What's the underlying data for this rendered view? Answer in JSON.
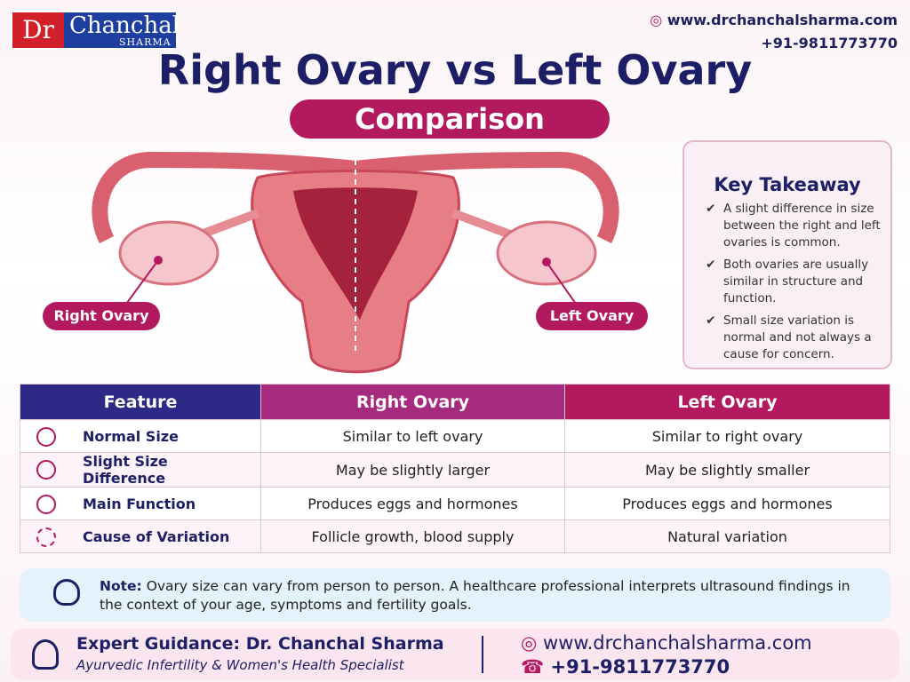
{
  "logo": {
    "dr": "Dr",
    "name": "Chanchal",
    "surname": "SHARMA"
  },
  "contact": {
    "website": "www.drchanchalsharma.com",
    "phone": "+91-9811773770"
  },
  "title": "Right Ovary vs Left Ovary",
  "subtitle": "Comparison",
  "diagram_labels": {
    "right": "Right Ovary",
    "left": "Left Ovary"
  },
  "key_takeaway": {
    "title": "Key Takeaway",
    "points": [
      "A slight difference in size between the right and left ovaries is common.",
      "Both ovaries are usually similar in structure and function.",
      "Small size variation is normal and not always a cause for concern."
    ]
  },
  "table": {
    "header": [
      "Feature",
      "Right Ovary",
      "Left Ovary"
    ],
    "rows": [
      [
        "Normal Size",
        "Similar to left ovary",
        "Similar to right ovary"
      ],
      [
        "Slight Size Difference",
        "May be slightly larger",
        "May be slightly smaller"
      ],
      [
        "Main Function",
        "Produces eggs and hormones",
        "Produces eggs and hormones"
      ],
      [
        "Cause of Variation",
        "Follicle growth, blood supply",
        "Natural variation"
      ]
    ]
  },
  "note": {
    "label": "Note:",
    "text": "Ovary size can vary from person to person. A healthcare professional interprets ultrasound findings in the context of your age, symptoms and fertility goals."
  },
  "footer": {
    "title": "Expert Guidance: Dr. Chanchal Sharma",
    "subtitle": "Ayurvedic Infertility & Women's Health Specialist",
    "website": "www.drchanchalsharma.com",
    "phone": "+91-9811773770"
  }
}
